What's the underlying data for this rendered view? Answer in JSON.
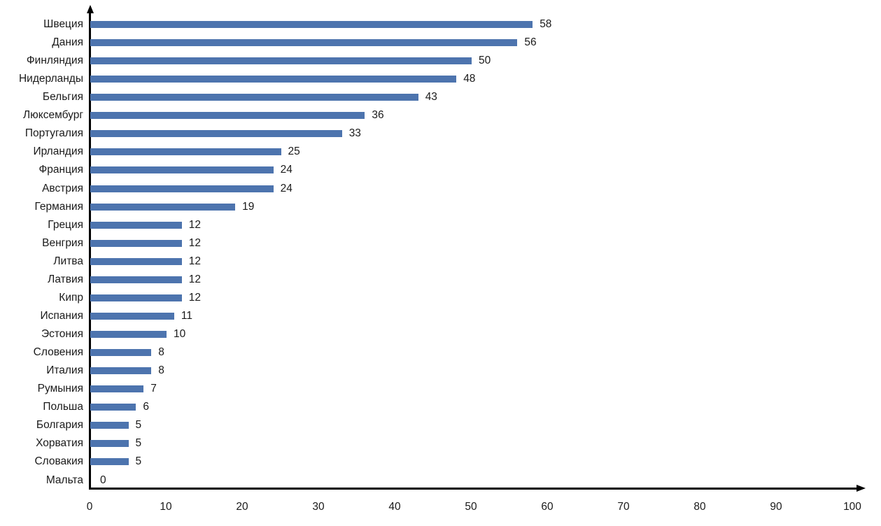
{
  "chart_data": {
    "type": "bar",
    "orientation": "horizontal",
    "title": "",
    "xlabel": "",
    "ylabel": "",
    "categories": [
      "Швеция",
      "Дания",
      "Финляндия",
      "Нидерланды",
      "Бельгия",
      "Люксембург",
      "Португалия",
      "Ирландия",
      "Франция",
      "Австрия",
      "Германия",
      "Греция",
      "Венгрия",
      "Литва",
      "Латвия",
      "Кипр",
      "Испания",
      "Эстония",
      "Словения",
      "Италия",
      "Румыния",
      "Польша",
      "Болгария",
      "Хорватия",
      "Словакия",
      "Мальта"
    ],
    "values": [
      58,
      56,
      50,
      48,
      43,
      36,
      33,
      25,
      24,
      24,
      19,
      12,
      12,
      12,
      12,
      12,
      11,
      10,
      8,
      8,
      7,
      6,
      5,
      5,
      5,
      0
    ],
    "value_labels_shown": true,
    "x_ticks": [
      "0",
      "10",
      "20",
      "30",
      "40",
      "50",
      "60",
      "70",
      "80",
      "90",
      "100"
    ],
    "xlim": [
      0,
      100
    ],
    "grid": false,
    "legend": null,
    "colors": {
      "bar": "#4d74ae",
      "axis": "#000000",
      "text": "#1a1a1a",
      "background": "#ffffff"
    }
  }
}
